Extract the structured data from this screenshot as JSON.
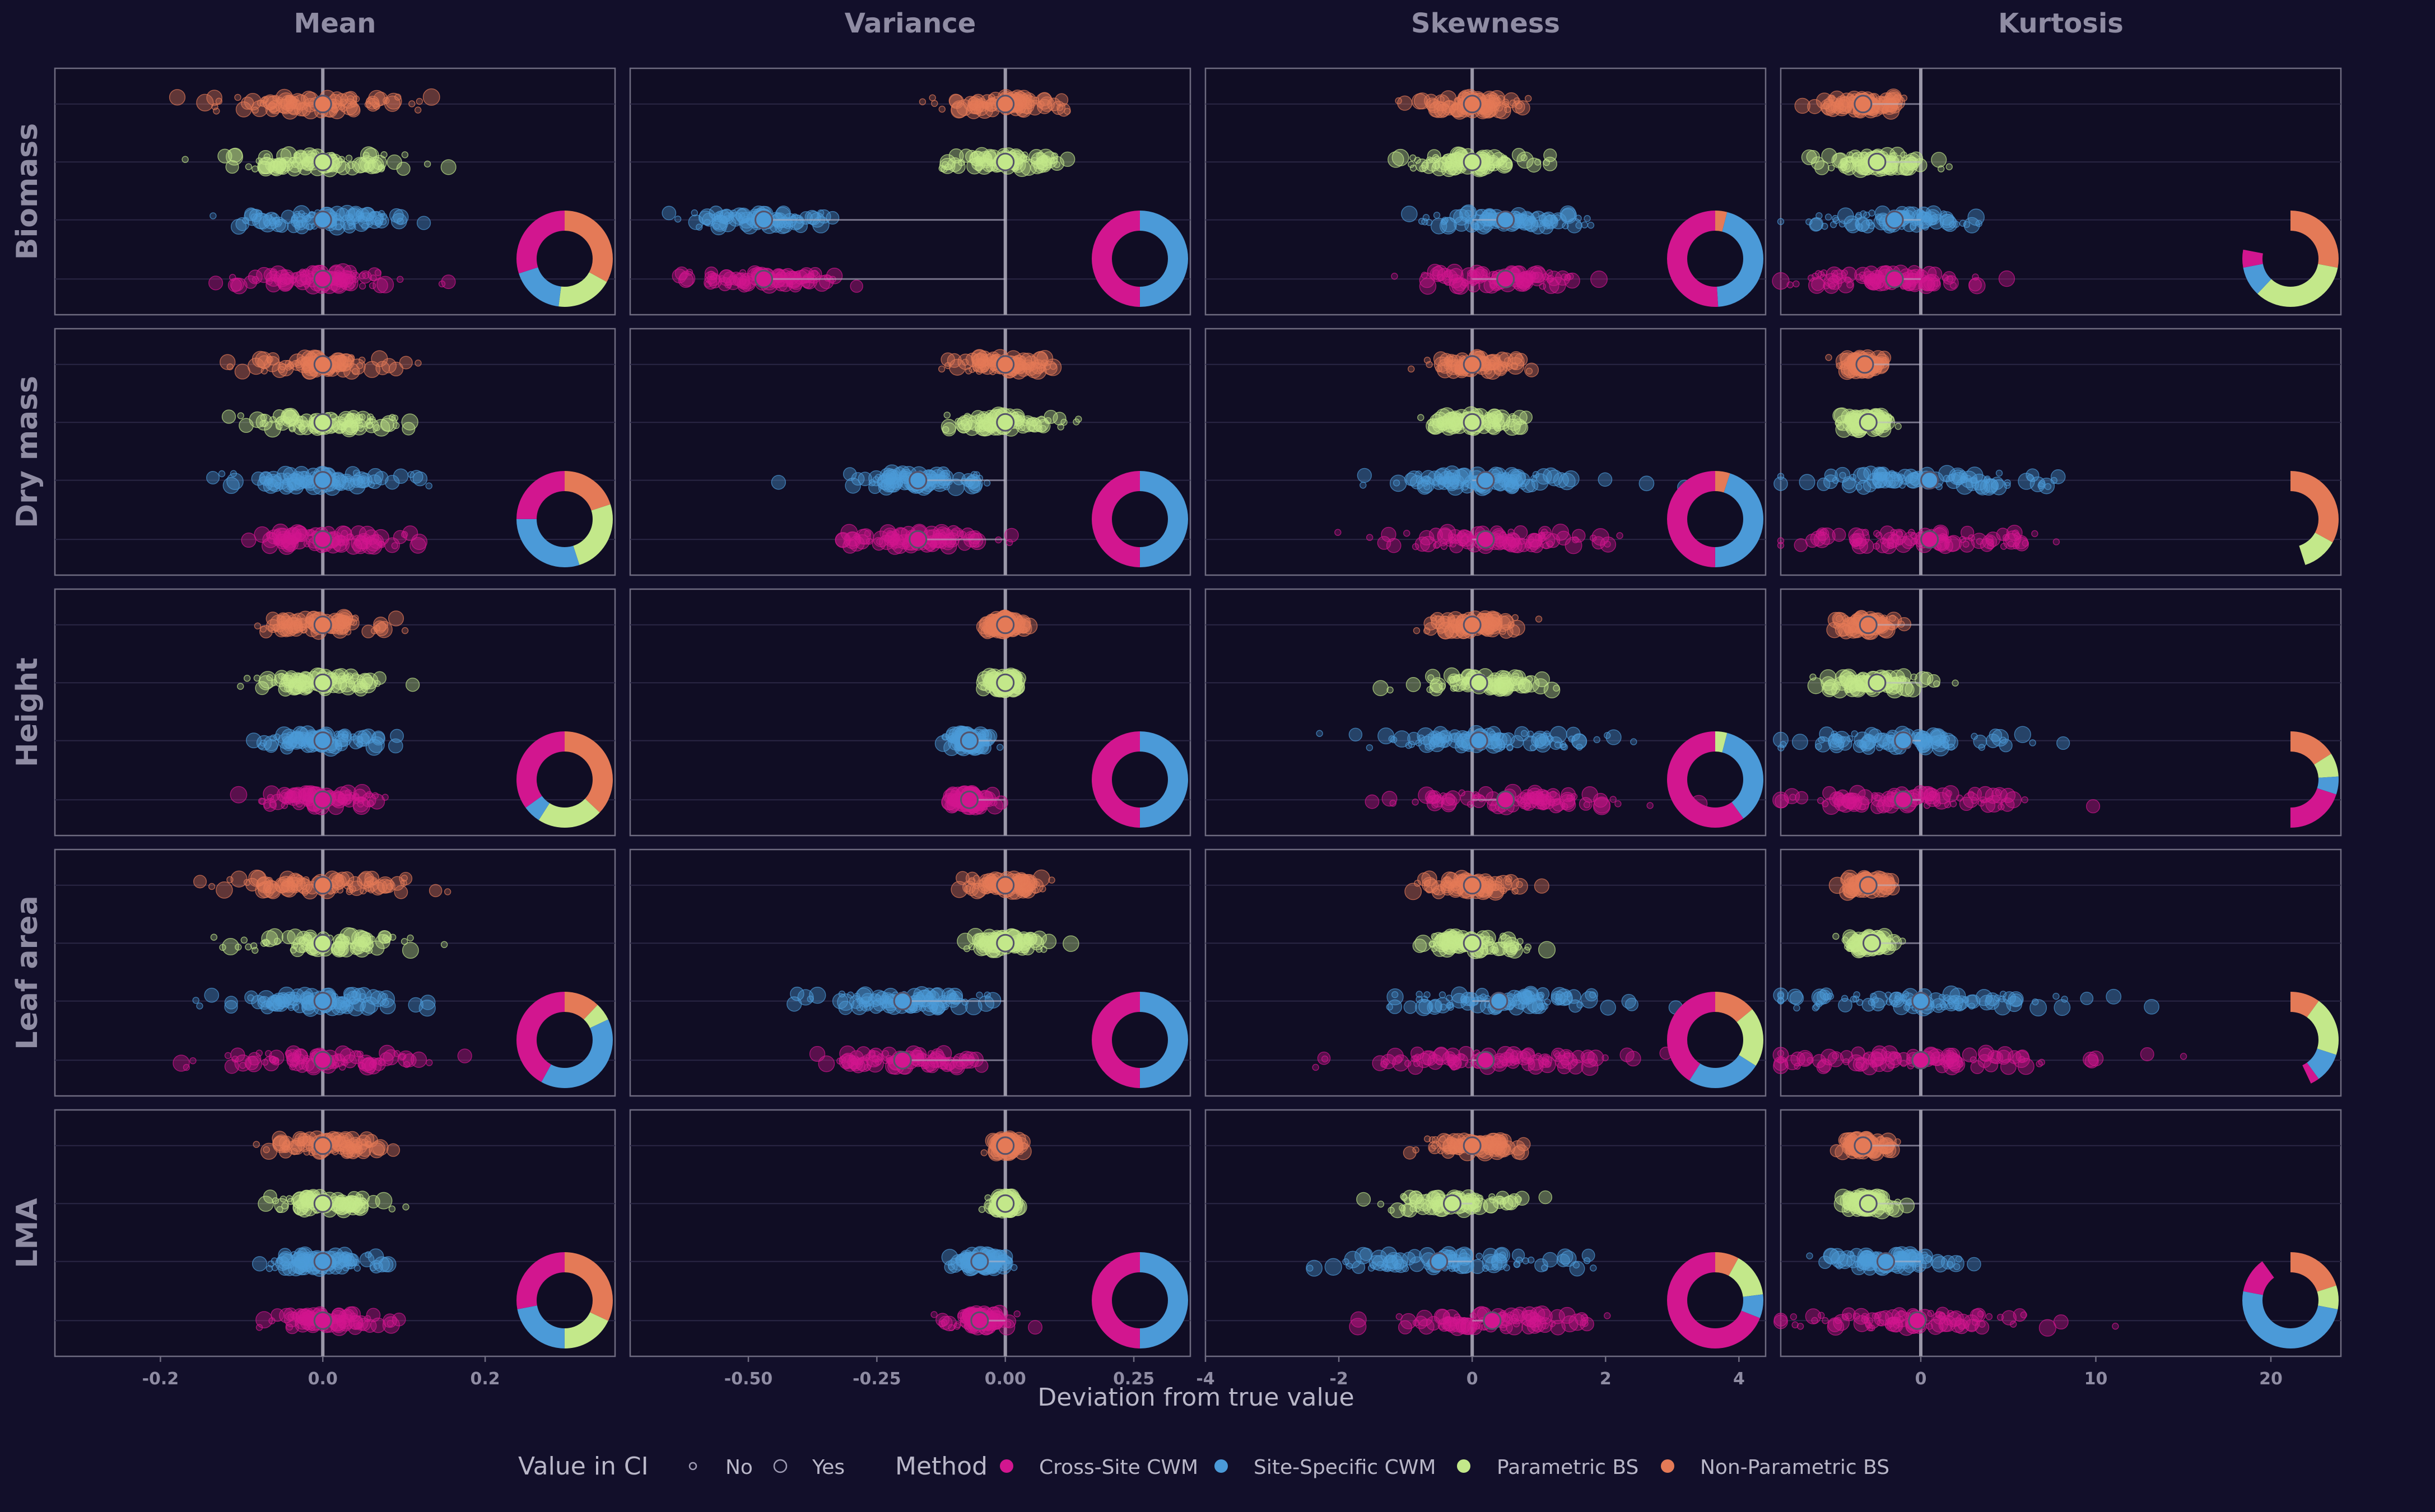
{
  "figure": {
    "background": "#120f2a",
    "panel_background": "#100d24",
    "panel_border": "#6e6b80",
    "label_color": "#8f8ca3",
    "row_labels": [
      "Biomass",
      "Dry mass",
      "Height",
      "Leaf area",
      "LMA"
    ],
    "col_labels": [
      "Mean",
      "Variance",
      "Skewness",
      "Kurtosis"
    ],
    "xlabel": "Deviation from true value",
    "legend": {
      "ci_title": "Value in CI",
      "ci_entries": [
        "No",
        "Yes"
      ],
      "method_title": "Method",
      "method_entries": [
        "Cross-Site CWM",
        "Site-Specific CWM",
        "Parametric BS",
        "Non-Parametric BS"
      ],
      "method_colors": [
        "#d2168f",
        "#4b9ad8",
        "#c3e88a",
        "#e47a57"
      ]
    }
  },
  "chart_data": {
    "type": "scatter",
    "facet_rows": [
      "Biomass",
      "Dry mass",
      "Height",
      "Leaf area",
      "LMA"
    ],
    "facet_cols": [
      "Mean",
      "Variance",
      "Skewness",
      "Kurtosis"
    ],
    "methods_top_to_bottom": [
      "Non-Parametric BS",
      "Parametric BS",
      "Site-Specific CWM",
      "Cross-Site CWM"
    ],
    "reference_line_x": 0,
    "axes": [
      {
        "name": "Mean",
        "xlim": [
          -0.33,
          0.36
        ],
        "ticks": [
          -0.2,
          0,
          0.2
        ],
        "tick_labels": [
          "-0.2",
          "0.0",
          "0.2"
        ]
      },
      {
        "name": "Variance",
        "xlim": [
          -0.73,
          0.36
        ],
        "ticks": [
          -0.5,
          -0.25,
          0,
          0.25
        ],
        "tick_labels": [
          "-0.50",
          "-0.25",
          "0.00",
          "0.25"
        ]
      },
      {
        "name": "Skewness",
        "xlim": [
          -4.0,
          4.4
        ],
        "ticks": [
          -4,
          -2,
          0,
          2,
          4
        ],
        "tick_labels": [
          "-4",
          "-2",
          "0",
          "2",
          "4"
        ]
      },
      {
        "name": "Kurtosis",
        "xlim": [
          -8.0,
          24.0
        ],
        "ticks": [
          0,
          10,
          20
        ],
        "tick_labels": [
          "0",
          "10",
          "20"
        ]
      }
    ],
    "panels": [
      {
        "trait": "Biomass",
        "moment": "Mean",
        "estimates": [
          {
            "method": "Non-Parametric BS",
            "center": 0.0,
            "spread": 0.06
          },
          {
            "method": "Parametric BS",
            "center": 0.0,
            "spread": 0.06
          },
          {
            "method": "Site-Specific CWM",
            "center": 0.0,
            "spread": 0.06
          },
          {
            "method": "Cross-Site CWM",
            "center": 0.0,
            "spread": 0.06
          }
        ],
        "ci_share": [
          0.33,
          0.19,
          0.18,
          0.3
        ]
      },
      {
        "trait": "Biomass",
        "moment": "Variance",
        "estimates": [
          {
            "method": "Non-Parametric BS",
            "center": 0.0,
            "spread": 0.06
          },
          {
            "method": "Parametric BS",
            "center": 0.0,
            "spread": 0.06
          },
          {
            "method": "Site-Specific CWM",
            "center": -0.47,
            "spread": 0.07
          },
          {
            "method": "Cross-Site CWM",
            "center": -0.47,
            "spread": 0.07
          }
        ],
        "ci_share": [
          0.0,
          0.0,
          0.5,
          0.5
        ]
      },
      {
        "trait": "Biomass",
        "moment": "Skewness",
        "estimates": [
          {
            "method": "Non-Parametric BS",
            "center": 0.0,
            "spread": 0.4
          },
          {
            "method": "Parametric BS",
            "center": 0.0,
            "spread": 0.4
          },
          {
            "method": "Site-Specific CWM",
            "center": 0.5,
            "spread": 0.6
          },
          {
            "method": "Cross-Site CWM",
            "center": 0.5,
            "spread": 0.6
          }
        ],
        "ci_share": [
          0.04,
          0.0,
          0.45,
          0.51
        ]
      },
      {
        "trait": "Biomass",
        "moment": "Kurtosis",
        "estimates": [
          {
            "method": "Non-Parametric BS",
            "center": -3.3,
            "spread": 1.0
          },
          {
            "method": "Parametric BS",
            "center": -2.5,
            "spread": 1.5
          },
          {
            "method": "Site-Specific CWM",
            "center": -1.5,
            "spread": 2.5
          },
          {
            "method": "Cross-Site CWM",
            "center": -1.5,
            "spread": 2.5
          }
        ],
        "ci_share": [
          0.28,
          0.34,
          0.1,
          0.06
        ]
      },
      {
        "trait": "Dry mass",
        "moment": "Mean",
        "estimates": [
          {
            "method": "Non-Parametric BS",
            "center": 0.0,
            "spread": 0.05
          },
          {
            "method": "Parametric BS",
            "center": 0.0,
            "spread": 0.05
          },
          {
            "method": "Site-Specific CWM",
            "center": 0.0,
            "spread": 0.05
          },
          {
            "method": "Cross-Site CWM",
            "center": 0.0,
            "spread": 0.05
          }
        ],
        "ci_share": [
          0.2,
          0.25,
          0.3,
          0.25
        ]
      },
      {
        "trait": "Dry mass",
        "moment": "Variance",
        "estimates": [
          {
            "method": "Non-Parametric BS",
            "center": 0.0,
            "spread": 0.05
          },
          {
            "method": "Parametric BS",
            "center": 0.0,
            "spread": 0.05
          },
          {
            "method": "Site-Specific CWM",
            "center": -0.17,
            "spread": 0.07
          },
          {
            "method": "Cross-Site CWM",
            "center": -0.17,
            "spread": 0.07
          }
        ],
        "ci_share": [
          0.0,
          0.0,
          0.5,
          0.5
        ]
      },
      {
        "trait": "Dry mass",
        "moment": "Skewness",
        "estimates": [
          {
            "method": "Non-Parametric BS",
            "center": 0.0,
            "spread": 0.35
          },
          {
            "method": "Parametric BS",
            "center": 0.0,
            "spread": 0.35
          },
          {
            "method": "Site-Specific CWM",
            "center": 0.2,
            "spread": 0.8
          },
          {
            "method": "Cross-Site CWM",
            "center": 0.2,
            "spread": 0.8
          }
        ],
        "ci_share": [
          0.05,
          0.0,
          0.45,
          0.5
        ]
      },
      {
        "trait": "Dry mass",
        "moment": "Kurtosis",
        "estimates": [
          {
            "method": "Non-Parametric BS",
            "center": -3.2,
            "spread": 0.6
          },
          {
            "method": "Parametric BS",
            "center": -3.0,
            "spread": 0.7
          },
          {
            "method": "Site-Specific CWM",
            "center": 0.5,
            "spread": 4.0
          },
          {
            "method": "Cross-Site CWM",
            "center": 0.5,
            "spread": 4.0
          }
        ],
        "ci_share": [
          0.33,
          0.12,
          0.0,
          0.0
        ]
      },
      {
        "trait": "Height",
        "moment": "Mean",
        "estimates": [
          {
            "method": "Non-Parametric BS",
            "center": 0.0,
            "spread": 0.04
          },
          {
            "method": "Parametric BS",
            "center": 0.0,
            "spread": 0.04
          },
          {
            "method": "Site-Specific CWM",
            "center": 0.0,
            "spread": 0.04
          },
          {
            "method": "Cross-Site CWM",
            "center": 0.0,
            "spread": 0.04
          }
        ],
        "ci_share": [
          0.37,
          0.22,
          0.06,
          0.35
        ]
      },
      {
        "trait": "Height",
        "moment": "Variance",
        "estimates": [
          {
            "method": "Non-Parametric BS",
            "center": 0.0,
            "spread": 0.02
          },
          {
            "method": "Parametric BS",
            "center": 0.0,
            "spread": 0.02
          },
          {
            "method": "Site-Specific CWM",
            "center": -0.07,
            "spread": 0.02
          },
          {
            "method": "Cross-Site CWM",
            "center": -0.07,
            "spread": 0.02
          }
        ],
        "ci_share": [
          0.0,
          0.0,
          0.5,
          0.5
        ]
      },
      {
        "trait": "Height",
        "moment": "Skewness",
        "estimates": [
          {
            "method": "Non-Parametric BS",
            "center": 0.0,
            "spread": 0.35
          },
          {
            "method": "Parametric BS",
            "center": 0.1,
            "spread": 0.5
          },
          {
            "method": "Site-Specific CWM",
            "center": 0.1,
            "spread": 1.0
          },
          {
            "method": "Cross-Site CWM",
            "center": 0.5,
            "spread": 1.0
          }
        ],
        "ci_share": [
          0.0,
          0.04,
          0.36,
          0.6
        ]
      },
      {
        "trait": "Height",
        "moment": "Kurtosis",
        "estimates": [
          {
            "method": "Non-Parametric BS",
            "center": -3.0,
            "spread": 0.8
          },
          {
            "method": "Parametric BS",
            "center": -2.5,
            "spread": 1.5
          },
          {
            "method": "Site-Specific CWM",
            "center": -1.0,
            "spread": 3.5
          },
          {
            "method": "Cross-Site CWM",
            "center": -1.0,
            "spread": 3.5
          }
        ],
        "ci_share": [
          0.16,
          0.08,
          0.06,
          0.2
        ]
      },
      {
        "trait": "Leaf area",
        "moment": "Mean",
        "estimates": [
          {
            "method": "Non-Parametric BS",
            "center": 0.0,
            "spread": 0.06
          },
          {
            "method": "Parametric BS",
            "center": 0.0,
            "spread": 0.06
          },
          {
            "method": "Site-Specific CWM",
            "center": 0.0,
            "spread": 0.06
          },
          {
            "method": "Cross-Site CWM",
            "center": 0.0,
            "spread": 0.06
          }
        ],
        "ci_share": [
          0.12,
          0.06,
          0.4,
          0.42
        ]
      },
      {
        "trait": "Leaf area",
        "moment": "Variance",
        "estimates": [
          {
            "method": "Non-Parametric BS",
            "center": 0.0,
            "spread": 0.04
          },
          {
            "method": "Parametric BS",
            "center": 0.0,
            "spread": 0.04
          },
          {
            "method": "Site-Specific CWM",
            "center": -0.2,
            "spread": 0.08
          },
          {
            "method": "Cross-Site CWM",
            "center": -0.2,
            "spread": 0.08
          }
        ],
        "ci_share": [
          0.0,
          0.0,
          0.5,
          0.5
        ]
      },
      {
        "trait": "Leaf area",
        "moment": "Skewness",
        "estimates": [
          {
            "method": "Non-Parametric BS",
            "center": 0.0,
            "spread": 0.35
          },
          {
            "method": "Parametric BS",
            "center": 0.0,
            "spread": 0.35
          },
          {
            "method": "Site-Specific CWM",
            "center": 0.4,
            "spread": 1.0
          },
          {
            "method": "Cross-Site CWM",
            "center": 0.2,
            "spread": 1.0
          }
        ],
        "ci_share": [
          0.14,
          0.2,
          0.25,
          0.41
        ]
      },
      {
        "trait": "Leaf area",
        "moment": "Kurtosis",
        "estimates": [
          {
            "method": "Non-Parametric BS",
            "center": -3.0,
            "spread": 0.7
          },
          {
            "method": "Parametric BS",
            "center": -2.8,
            "spread": 0.7
          },
          {
            "method": "Site-Specific CWM",
            "center": 0.0,
            "spread": 5.0
          },
          {
            "method": "Cross-Site CWM",
            "center": 0.0,
            "spread": 5.0
          }
        ],
        "ci_share": [
          0.1,
          0.2,
          0.1,
          0.03
        ]
      },
      {
        "trait": "LMA",
        "moment": "Mean",
        "estimates": [
          {
            "method": "Non-Parametric BS",
            "center": 0.0,
            "spread": 0.035
          },
          {
            "method": "Parametric BS",
            "center": 0.0,
            "spread": 0.035
          },
          {
            "method": "Site-Specific CWM",
            "center": 0.0,
            "spread": 0.035
          },
          {
            "method": "Cross-Site CWM",
            "center": 0.0,
            "spread": 0.035
          }
        ],
        "ci_share": [
          0.32,
          0.18,
          0.22,
          0.28
        ]
      },
      {
        "trait": "LMA",
        "moment": "Variance",
        "estimates": [
          {
            "method": "Non-Parametric BS",
            "center": 0.0,
            "spread": 0.015
          },
          {
            "method": "Parametric BS",
            "center": 0.0,
            "spread": 0.015
          },
          {
            "method": "Site-Specific CWM",
            "center": -0.05,
            "spread": 0.03
          },
          {
            "method": "Cross-Site CWM",
            "center": -0.05,
            "spread": 0.03
          }
        ],
        "ci_share": [
          0.0,
          0.0,
          0.5,
          0.5
        ]
      },
      {
        "trait": "LMA",
        "moment": "Skewness",
        "estimates": [
          {
            "method": "Non-Parametric BS",
            "center": 0.0,
            "spread": 0.4
          },
          {
            "method": "Parametric BS",
            "center": -0.3,
            "spread": 0.5
          },
          {
            "method": "Site-Specific CWM",
            "center": -0.5,
            "spread": 1.0
          },
          {
            "method": "Cross-Site CWM",
            "center": 0.3,
            "spread": 0.8
          }
        ],
        "ci_share": [
          0.08,
          0.15,
          0.08,
          0.69
        ]
      },
      {
        "trait": "LMA",
        "moment": "Kurtosis",
        "estimates": [
          {
            "method": "Non-Parametric BS",
            "center": -3.3,
            "spread": 0.7
          },
          {
            "method": "Parametric BS",
            "center": -3.0,
            "spread": 0.8
          },
          {
            "method": "Site-Specific CWM",
            "center": -2.0,
            "spread": 2.0
          },
          {
            "method": "Cross-Site CWM",
            "center": -0.2,
            "spread": 4.0
          }
        ],
        "ci_share": [
          0.2,
          0.08,
          0.5,
          0.12
        ]
      }
    ]
  }
}
